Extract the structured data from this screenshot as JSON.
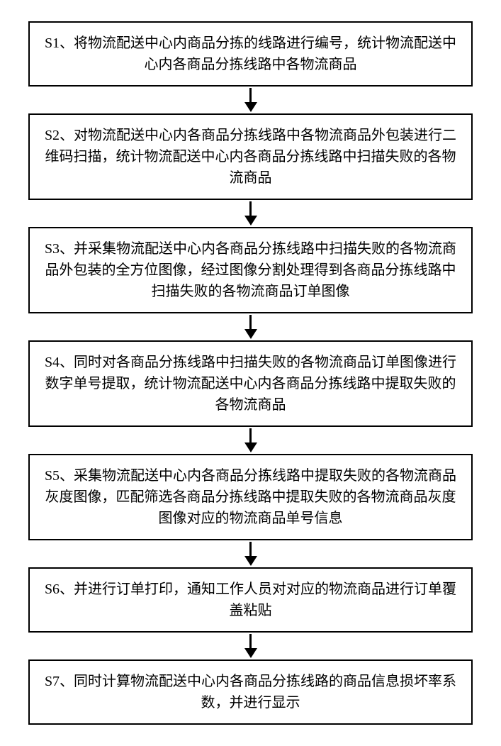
{
  "flowchart": {
    "type": "flowchart",
    "direction": "vertical",
    "background_color": "#ffffff",
    "box_border_color": "#000000",
    "box_border_width": 2,
    "box_background_color": "#ffffff",
    "text_color": "#000000",
    "font_size": 20,
    "font_family": "SimSun",
    "arrow_color": "#000000",
    "arrow_line_width": 3,
    "arrow_line_height": 20,
    "arrow_head_width": 18,
    "arrow_head_height": 14,
    "steps": [
      {
        "id": "S1",
        "text": "S1、将物流配送中心内商品分拣的线路进行编号，统计物流配送中心内各商品分拣线路中各物流商品"
      },
      {
        "id": "S2",
        "text": "S2、对物流配送中心内各商品分拣线路中各物流商品外包装进行二维码扫描，统计物流配送中心内各商品分拣线路中扫描失败的各物流商品"
      },
      {
        "id": "S3",
        "text": "S3、并采集物流配送中心内各商品分拣线路中扫描失败的各物流商品外包装的全方位图像，经过图像分割处理得到各商品分拣线路中扫描失败的各物流商品订单图像"
      },
      {
        "id": "S4",
        "text": "S4、同时对各商品分拣线路中扫描失败的各物流商品订单图像进行数字单号提取，统计物流配送中心内各商品分拣线路中提取失败的各物流商品"
      },
      {
        "id": "S5",
        "text": "S5、采集物流配送中心内各商品分拣线路中提取失败的各物流商品灰度图像，匹配筛选各商品分拣线路中提取失败的各物流商品灰度图像对应的物流商品单号信息"
      },
      {
        "id": "S6",
        "text": "S6、并进行订单打印，通知工作人员对对应的物流商品进行订单覆盖粘贴"
      },
      {
        "id": "S7",
        "text": "S7、同时计算物流配送中心内各商品分拣线路的商品信息损坏率系数，并进行显示"
      }
    ]
  }
}
